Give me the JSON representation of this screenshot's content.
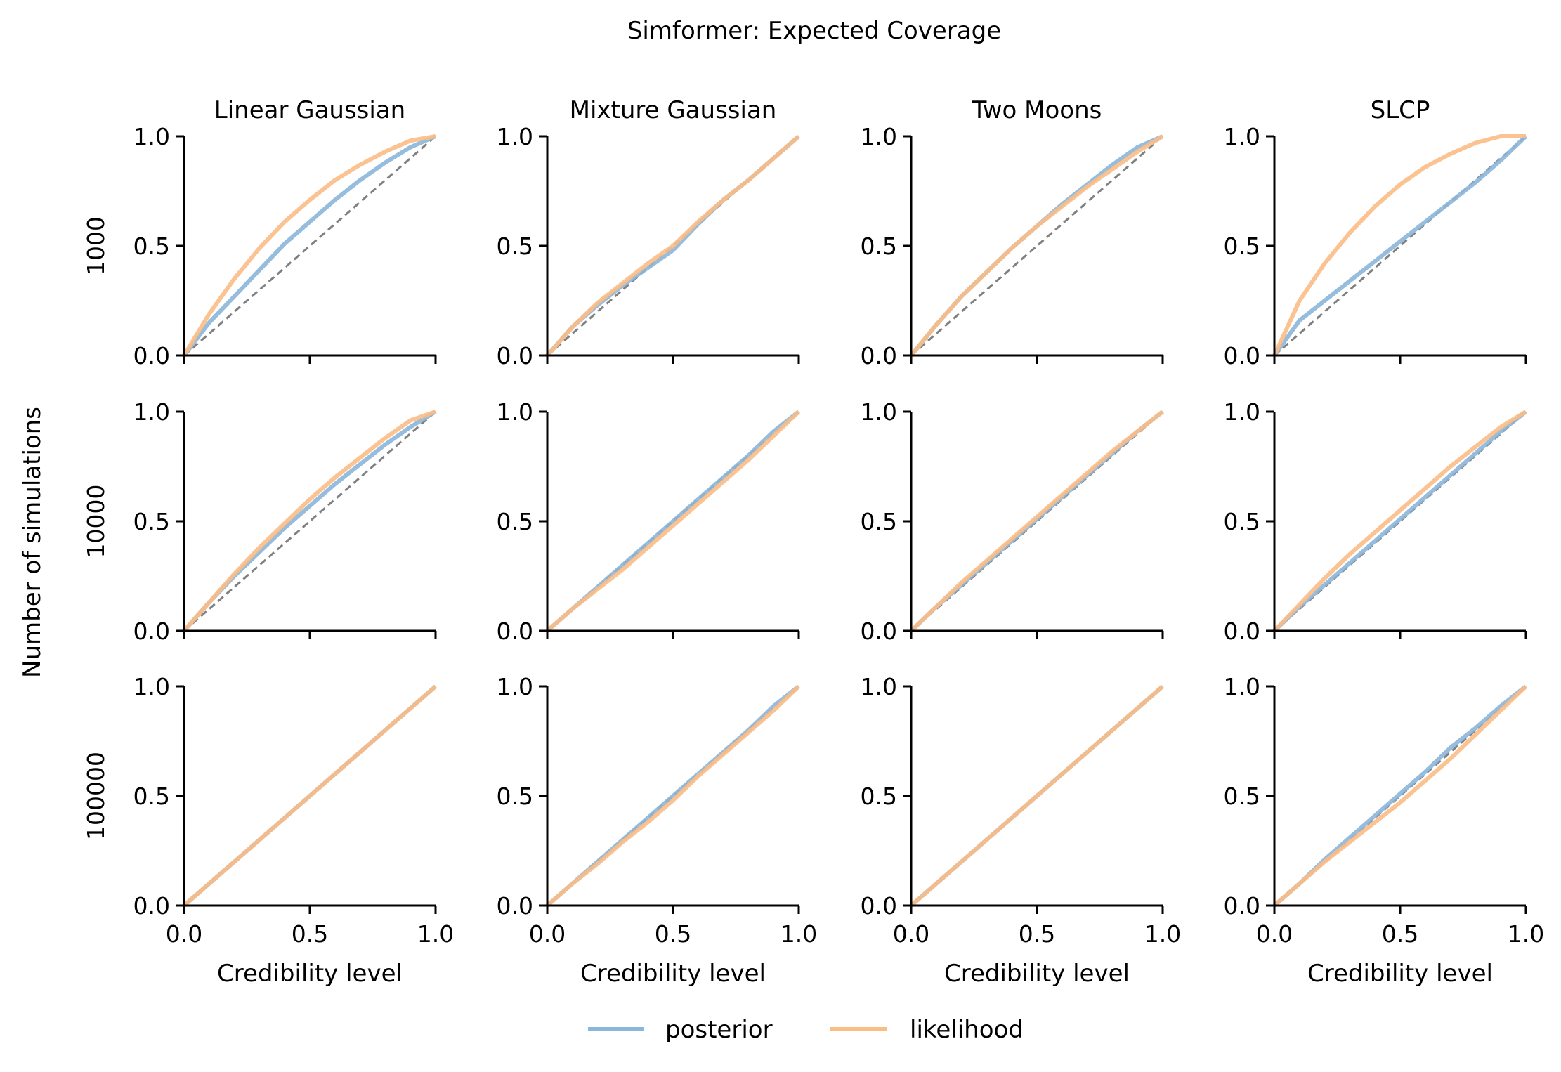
{
  "title": "Simformer: Expected Coverage",
  "ylabel": "Number of simulations",
  "xlabel": "Credibility level",
  "columns": [
    "Linear Gaussian",
    "Mixture Gaussian",
    "Two Moons",
    "SLCP"
  ],
  "rows": [
    "1000",
    "10000",
    "100000"
  ],
  "ticks": [
    "0.0",
    "0.5",
    "1.0"
  ],
  "legend": [
    {
      "label": "posterior",
      "color": "#8bb6d9"
    },
    {
      "label": "likelihood",
      "color": "#fbbd86"
    }
  ],
  "colors": {
    "posterior": "#8bb6d9",
    "likelihood": "#fbbd86",
    "diagonal": "#808080"
  },
  "chart_data": {
    "type": "line",
    "xlim": [
      0,
      1
    ],
    "ylim": [
      0,
      1
    ],
    "grid": false,
    "legend_position": "bottom-center",
    "x": [
      0,
      0.1,
      0.2,
      0.3,
      0.4,
      0.5,
      0.6,
      0.7,
      0.8,
      0.9,
      1.0
    ],
    "panels": [
      {
        "row": "1000",
        "column": "Linear Gaussian",
        "series": [
          {
            "name": "posterior",
            "values": [
              0,
              0.15,
              0.27,
              0.39,
              0.51,
              0.61,
              0.71,
              0.8,
              0.88,
              0.95,
              1.0
            ]
          },
          {
            "name": "likelihood",
            "values": [
              0,
              0.19,
              0.35,
              0.49,
              0.61,
              0.71,
              0.8,
              0.87,
              0.93,
              0.98,
              1.0
            ]
          }
        ]
      },
      {
        "row": "1000",
        "column": "Mixture Gaussian",
        "series": [
          {
            "name": "posterior",
            "values": [
              0,
              0.13,
              0.23,
              0.32,
              0.4,
              0.48,
              0.6,
              0.71,
              0.8,
              0.9,
              1.0
            ]
          },
          {
            "name": "likelihood",
            "values": [
              0,
              0.13,
              0.24,
              0.33,
              0.42,
              0.5,
              0.61,
              0.71,
              0.8,
              0.9,
              1.0
            ]
          }
        ]
      },
      {
        "row": "1000",
        "column": "Two Moons",
        "series": [
          {
            "name": "posterior",
            "values": [
              0,
              0.14,
              0.27,
              0.38,
              0.49,
              0.59,
              0.69,
              0.78,
              0.87,
              0.95,
              1.0
            ]
          },
          {
            "name": "likelihood",
            "values": [
              0,
              0.14,
              0.27,
              0.38,
              0.49,
              0.59,
              0.68,
              0.77,
              0.85,
              0.93,
              1.0
            ]
          }
        ]
      },
      {
        "row": "1000",
        "column": "SLCP",
        "series": [
          {
            "name": "posterior",
            "values": [
              0,
              0.16,
              0.25,
              0.34,
              0.43,
              0.52,
              0.61,
              0.7,
              0.79,
              0.89,
              1.0
            ]
          },
          {
            "name": "likelihood",
            "values": [
              0,
              0.25,
              0.42,
              0.56,
              0.68,
              0.78,
              0.86,
              0.92,
              0.97,
              1.0,
              1.0
            ]
          }
        ]
      },
      {
        "row": "10000",
        "column": "Linear Gaussian",
        "series": [
          {
            "name": "posterior",
            "values": [
              0,
              0.13,
              0.25,
              0.36,
              0.47,
              0.57,
              0.67,
              0.76,
              0.85,
              0.93,
              1.0
            ]
          },
          {
            "name": "likelihood",
            "values": [
              0,
              0.13,
              0.26,
              0.38,
              0.49,
              0.6,
              0.7,
              0.79,
              0.88,
              0.96,
              1.0
            ]
          }
        ]
      },
      {
        "row": "10000",
        "column": "Mixture Gaussian",
        "series": [
          {
            "name": "posterior",
            "values": [
              0,
              0.1,
              0.2,
              0.3,
              0.4,
              0.5,
              0.6,
              0.7,
              0.8,
              0.91,
              1.0
            ]
          },
          {
            "name": "likelihood",
            "values": [
              0,
              0.1,
              0.19,
              0.28,
              0.38,
              0.48,
              0.58,
              0.68,
              0.78,
              0.89,
              1.0
            ]
          }
        ]
      },
      {
        "row": "10000",
        "column": "Two Moons",
        "series": [
          {
            "name": "posterior",
            "values": [
              0,
              0.11,
              0.21,
              0.31,
              0.41,
              0.51,
              0.61,
              0.71,
              0.81,
              0.91,
              1.0
            ]
          },
          {
            "name": "likelihood",
            "values": [
              0,
              0.11,
              0.22,
              0.32,
              0.42,
              0.52,
              0.62,
              0.72,
              0.82,
              0.91,
              1.0
            ]
          }
        ]
      },
      {
        "row": "10000",
        "column": "SLCP",
        "series": [
          {
            "name": "posterior",
            "values": [
              0,
              0.11,
              0.21,
              0.31,
              0.41,
              0.51,
              0.61,
              0.71,
              0.81,
              0.91,
              1.0
            ]
          },
          {
            "name": "likelihood",
            "values": [
              0,
              0.12,
              0.24,
              0.35,
              0.45,
              0.55,
              0.65,
              0.75,
              0.84,
              0.93,
              1.0
            ]
          }
        ]
      },
      {
        "row": "100000",
        "column": "Linear Gaussian",
        "series": [
          {
            "name": "posterior",
            "values": [
              0,
              0.1,
              0.2,
              0.3,
              0.4,
              0.5,
              0.6,
              0.7,
              0.8,
              0.9,
              1.0
            ]
          },
          {
            "name": "likelihood",
            "values": [
              0,
              0.1,
              0.2,
              0.3,
              0.4,
              0.5,
              0.6,
              0.7,
              0.8,
              0.9,
              1.0
            ]
          }
        ]
      },
      {
        "row": "100000",
        "column": "Mixture Gaussian",
        "series": [
          {
            "name": "posterior",
            "values": [
              0,
              0.1,
              0.2,
              0.3,
              0.4,
              0.5,
              0.6,
              0.7,
              0.8,
              0.91,
              1.0
            ]
          },
          {
            "name": "likelihood",
            "values": [
              0,
              0.1,
              0.19,
              0.29,
              0.38,
              0.48,
              0.59,
              0.69,
              0.79,
              0.89,
              1.0
            ]
          }
        ]
      },
      {
        "row": "100000",
        "column": "Two Moons",
        "series": [
          {
            "name": "posterior",
            "values": [
              0,
              0.1,
              0.2,
              0.3,
              0.4,
              0.5,
              0.6,
              0.7,
              0.8,
              0.9,
              1.0
            ]
          },
          {
            "name": "likelihood",
            "values": [
              0,
              0.1,
              0.2,
              0.3,
              0.4,
              0.5,
              0.6,
              0.7,
              0.8,
              0.9,
              1.0
            ]
          }
        ]
      },
      {
        "row": "100000",
        "column": "SLCP",
        "series": [
          {
            "name": "posterior",
            "values": [
              0,
              0.1,
              0.21,
              0.31,
              0.41,
              0.51,
              0.61,
              0.72,
              0.81,
              0.91,
              1.0
            ]
          },
          {
            "name": "likelihood",
            "values": [
              0,
              0.1,
              0.2,
              0.29,
              0.38,
              0.47,
              0.57,
              0.67,
              0.78,
              0.89,
              1.0
            ]
          }
        ]
      }
    ]
  }
}
